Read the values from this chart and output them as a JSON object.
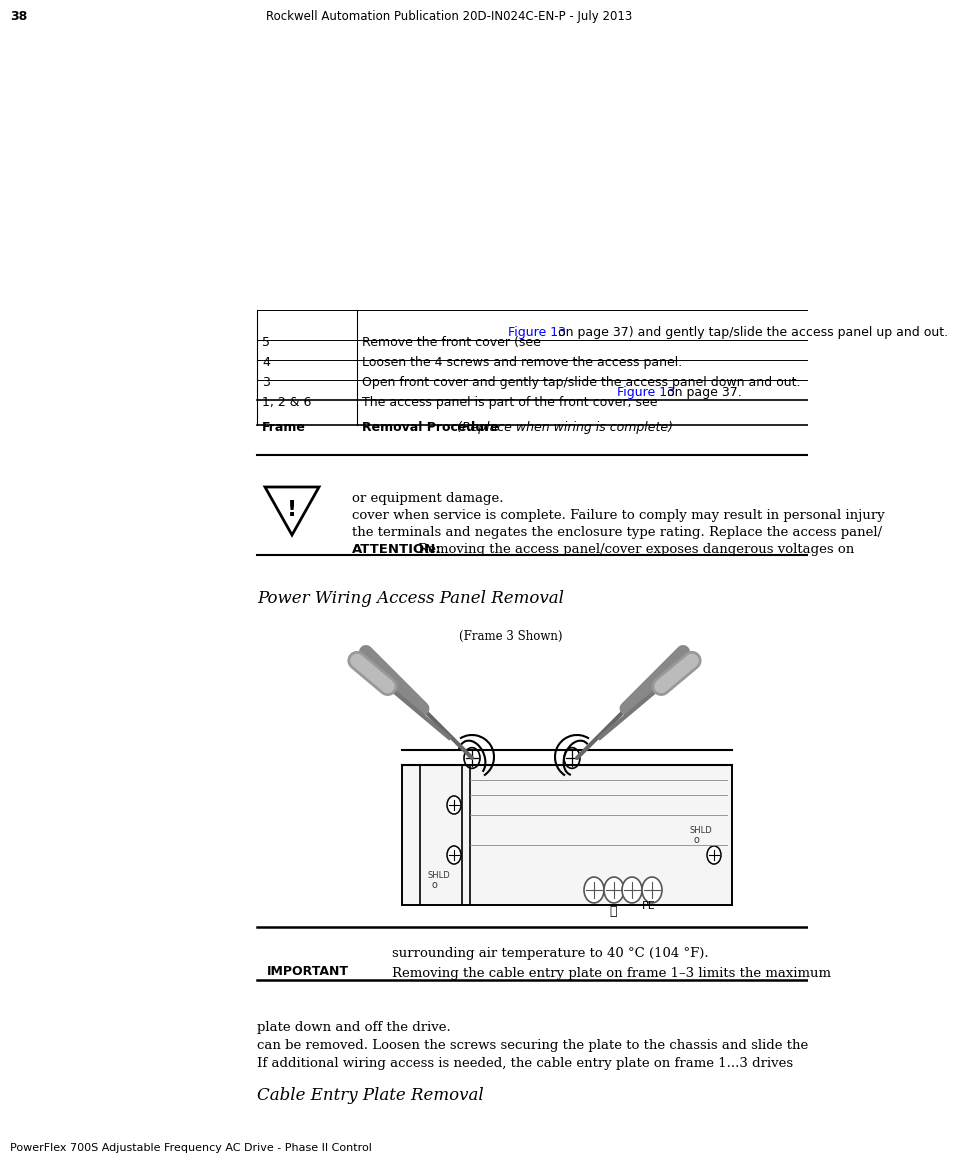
{
  "page_number": "38",
  "header_text": "PowerFlex 700S Adjustable Frequency AC Drive - Phase II Control",
  "footer_text": "Rockwell Automation Publication 20D-IN024C-EN-P - July 2013",
  "section1_title": "Cable Entry Plate Removal",
  "section1_body": "If additional wiring access is needed, the cable entry plate on frame 1...3 drives\ncan be removed. Loosen the screws securing the plate to the chassis and slide the\nplate down and off the drive.",
  "important_label": "IMPORTANT",
  "important_text": "Removing the cable entry plate on frame 1–3 limits the maximum\nsurrounding air temperature to 40 °C (104 °F).",
  "frame_caption": "(Frame 3 Shown)",
  "section2_title": "Power Wiring Access Panel Removal",
  "attention_label": "ATTENTION:",
  "attention_text": "Removing the access panel/cover exposes dangerous voltages on\nthe terminals and negates the enclosure type rating. Replace the access panel/\ncover when service is complete. Failure to comply may result in personal injury\nor equipment damage.",
  "table_headers": [
    "Frame",
    "Removal Procedure (Replace when wiring is complete)"
  ],
  "table_rows": [
    [
      "1, 2 & 6",
      "The access panel is part of the front cover, see Figure 13 on page 37."
    ],
    [
      "3",
      "Open front cover and gently tap/slide the access panel down and out."
    ],
    [
      "4",
      "Loosen the 4 screws and remove the access panel."
    ],
    [
      "5",
      "Remove the front cover (see Figure 13 on page 37) and gently tap/slide the access panel up and out."
    ]
  ],
  "bg_color": "#ffffff",
  "text_color": "#000000",
  "line_color": "#000000"
}
